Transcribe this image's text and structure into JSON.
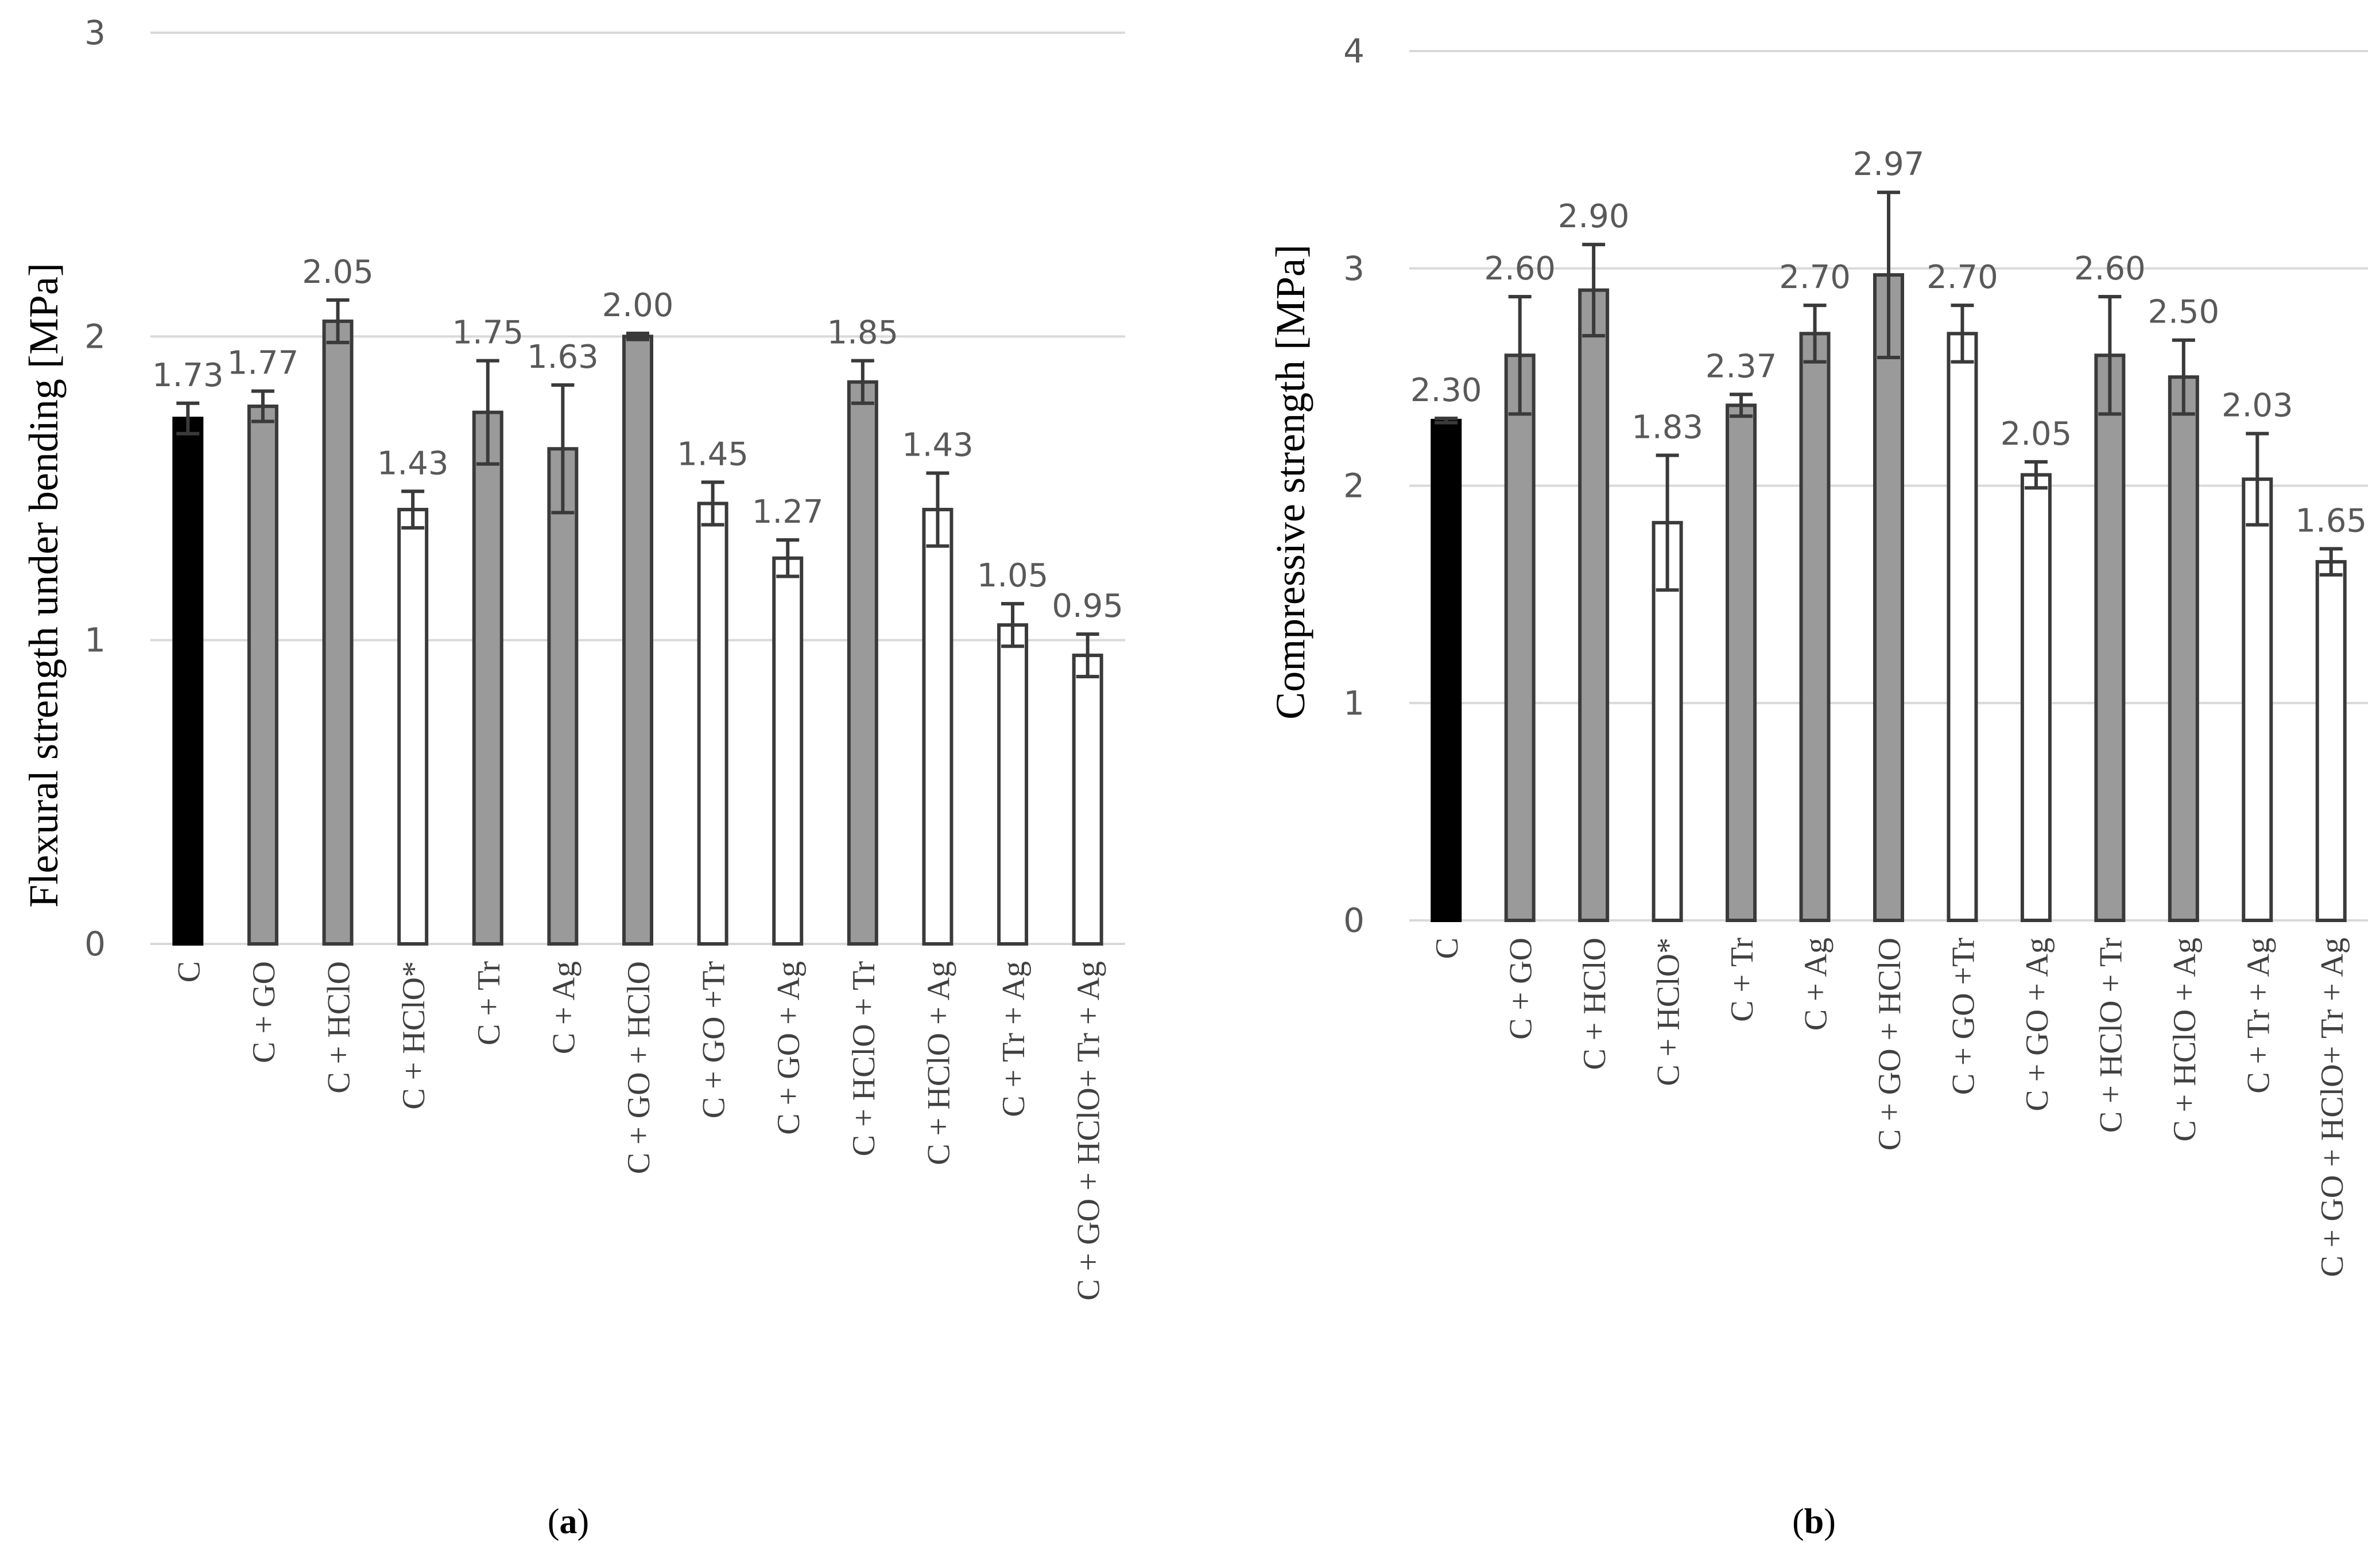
{
  "colors": {
    "control": "#000000",
    "gray_fill": "#9a9a9a",
    "white_fill": "#ffffff",
    "edge": "#3a3a3a",
    "gridline": "#d9d9d9",
    "tick_text": "#595959",
    "category_text": "#404040",
    "title_text": "#000000"
  },
  "chart_data": [
    {
      "type": "bar",
      "panel_label_open": "(",
      "panel_label_letter": "a",
      "panel_label_close": ")",
      "ylabel": "Flexural strength under bending [MPa]",
      "xlabel": "",
      "ylim": [
        0,
        3
      ],
      "yticks": [
        0,
        1,
        2,
        3
      ],
      "grid": true,
      "categories": [
        "C",
        "C + GO",
        "C + HClO",
        "C + HClO*",
        "C + Tr",
        "C + Ag",
        "C + GO + HClO",
        "C + GO +Tr",
        "C + GO + Ag",
        "C + HClO + Tr",
        "C + HClO + Ag",
        "C + Tr + Ag",
        "C + GO + HClO+ Tr + Ag"
      ],
      "values": [
        1.73,
        1.77,
        2.05,
        1.43,
        1.75,
        1.63,
        2.0,
        1.45,
        1.27,
        1.85,
        1.43,
        1.05,
        0.95
      ],
      "value_labels": [
        "1.73",
        "1.77",
        "2.05",
        "1.43",
        "1.75",
        "1.63",
        "2.00",
        "1.45",
        "1.27",
        "1.85",
        "1.43",
        "1.05",
        "0.95"
      ],
      "errors": [
        0.05,
        0.05,
        0.07,
        0.06,
        0.17,
        0.21,
        0.01,
        0.07,
        0.06,
        0.07,
        0.12,
        0.07,
        0.07
      ],
      "fills": [
        "control",
        "gray",
        "gray",
        "white",
        "gray",
        "gray",
        "gray",
        "white",
        "white",
        "gray",
        "white",
        "white",
        "white"
      ]
    },
    {
      "type": "bar",
      "panel_label_open": "(",
      "panel_label_letter": "b",
      "panel_label_close": ")",
      "ylabel": "Compressive strength [MPa]",
      "xlabel": "",
      "ylim": [
        0,
        4
      ],
      "yticks": [
        0,
        1,
        2,
        3,
        4
      ],
      "grid": true,
      "categories": [
        "C",
        "C + GO",
        "C + HClO",
        "C + HClO*",
        "C + Tr",
        "C + Ag",
        "C + GO + HClO",
        "C + GO +Tr",
        "C + GO + Ag",
        "C + HClO + Tr",
        "C + HClO + Ag",
        "C + Tr + Ag",
        "C + GO + HClO+ Tr + Ag"
      ],
      "values": [
        2.3,
        2.6,
        2.9,
        1.83,
        2.37,
        2.7,
        2.97,
        2.7,
        2.05,
        2.6,
        2.5,
        2.03,
        1.65
      ],
      "value_labels": [
        "2.30",
        "2.60",
        "2.90",
        "1.83",
        "2.37",
        "2.70",
        "2.97",
        "2.70",
        "2.05",
        "2.60",
        "2.50",
        "2.03",
        "1.65"
      ],
      "errors": [
        0.01,
        0.27,
        0.21,
        0.31,
        0.05,
        0.13,
        0.38,
        0.13,
        0.06,
        0.27,
        0.17,
        0.21,
        0.06
      ],
      "fills": [
        "control",
        "gray",
        "gray",
        "white",
        "gray",
        "gray",
        "gray",
        "white",
        "white",
        "gray",
        "gray",
        "white",
        "white"
      ]
    }
  ]
}
